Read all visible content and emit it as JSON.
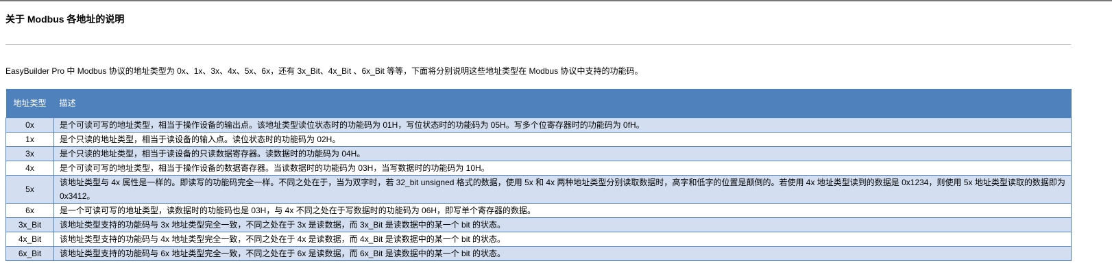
{
  "title": "关于 Modbus 各地址的说明",
  "intro": "EasyBuilder Pro 中 Modbus 协议的地址类型为 0x、1x、3x、4x、5x、6x，还有 3x_Bit、4x_Bit 、6x_Bit 等等，下面将分别说明这些地址类型在 Modbus 协议中支持的功能码。",
  "table": {
    "headers": [
      "地址类型",
      "描述"
    ],
    "rows": [
      {
        "type": "0x",
        "desc": "是个可读可写的地址类型，相当于操作设备的输出点。该地址类型读位状态时的功能码为 01H，写位状态时的功能码为 05H。写多个位寄存器时的功能码为 0fH。"
      },
      {
        "type": "1x",
        "desc": "是个只读的地址类型，相当于读设备的输入点。读位状态时的功能码为 02H。"
      },
      {
        "type": "3x",
        "desc": "是个只读的地址类型，相当于读设备的只读数据寄存器。读数据时的功能码为 04H。"
      },
      {
        "type": "4x",
        "desc": "是个可读可写的地址类型，相当于操作设备的数据寄存器。当读数据时的功能码为 03H，当写数据时的功能码为 10H。"
      },
      {
        "type": "5x",
        "desc": "该地址类型与 4x 属性是一样的。即读写的功能码完全一样。不同之处在于，当为双字时，若 32_bit unsigned 格式的数据，使用 5x 和 4x 两种地址类型分别读取数据时，高字和低字的位置是颠倒的。若使用 4x 地址类型读到的数据是 0x1234，则使用 5x 地址类型读取的数据即为 0x3412。"
      },
      {
        "type": "6x",
        "desc": "是一个可读可写的地址类型，读数据时的功能码也是 03H，与 4x 不同之处在于写数据时的功能码为 06H，即写单个寄存器的数据。"
      },
      {
        "type": "3x_Bit",
        "desc": "该地址类型支持的功能码与 3x 地址类型完全一致，不同之处在于 3x 是读数据，而 3x_Bit 是读数据中的某一个 bit 的状态。"
      },
      {
        "type": "4x_Bit",
        "desc": "该地址类型支持的功能码与 4x 地址类型完全一致，不同之处在于 4x 是读数据，而 4x_Bit 是读数据中的某一个 bit 的状态。"
      },
      {
        "type": "6x_Bit",
        "desc": "该地址类型支持的功能码与 6x 地址类型完全一致，不同之处在于 6x 是读数据，而 6x_Bit 是读数据中的某一个 bit 的状态。"
      }
    ]
  },
  "colors": {
    "header_bg": "#4f81bd",
    "alt_row_bg": "#d3dff0"
  }
}
